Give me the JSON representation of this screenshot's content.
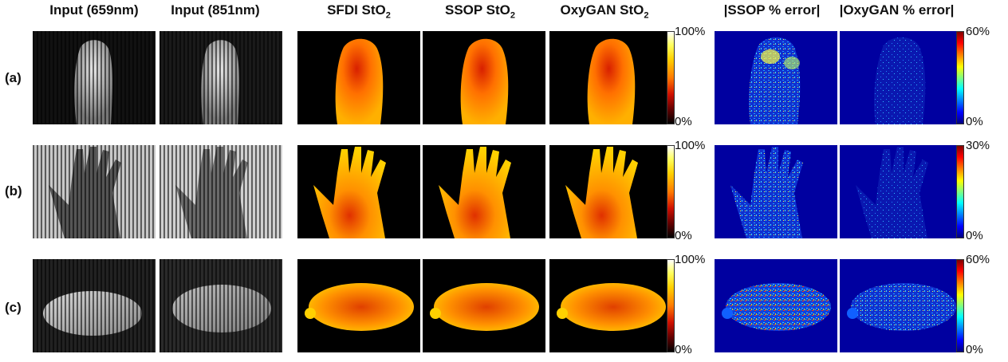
{
  "columns": {
    "input_659": "Input (659nm)",
    "input_851": "Input (851nm)",
    "sfdi": "SFDI StO",
    "ssop": "SSOP StO",
    "oxygan": "OxyGAN StO",
    "sub2": "2",
    "ssop_err": "|SSOP % error|",
    "oxygan_err": "|OxyGAN % error|"
  },
  "rows": [
    {
      "label": "(a)",
      "stO2_max": "100%",
      "stO2_min": "0%",
      "err_max": "60%",
      "err_min": "0%"
    },
    {
      "label": "(b)",
      "stO2_max": "100%",
      "stO2_min": "0%",
      "err_max": "30%",
      "err_min": "0%"
    },
    {
      "label": "(c)",
      "stO2_max": "100%",
      "stO2_min": "0%",
      "err_max": "60%",
      "err_min": "0%"
    }
  ],
  "colors": {
    "hot_colormap": [
      "#000000",
      "#d01000",
      "#ff7a00",
      "#ffd000",
      "#ffffff"
    ],
    "jet_colormap": [
      "#000080",
      "#0000ff",
      "#00ffff",
      "#ffff00",
      "#ff0000",
      "#800000"
    ],
    "background_dark": "#000000",
    "background_error": "#0000a0"
  }
}
